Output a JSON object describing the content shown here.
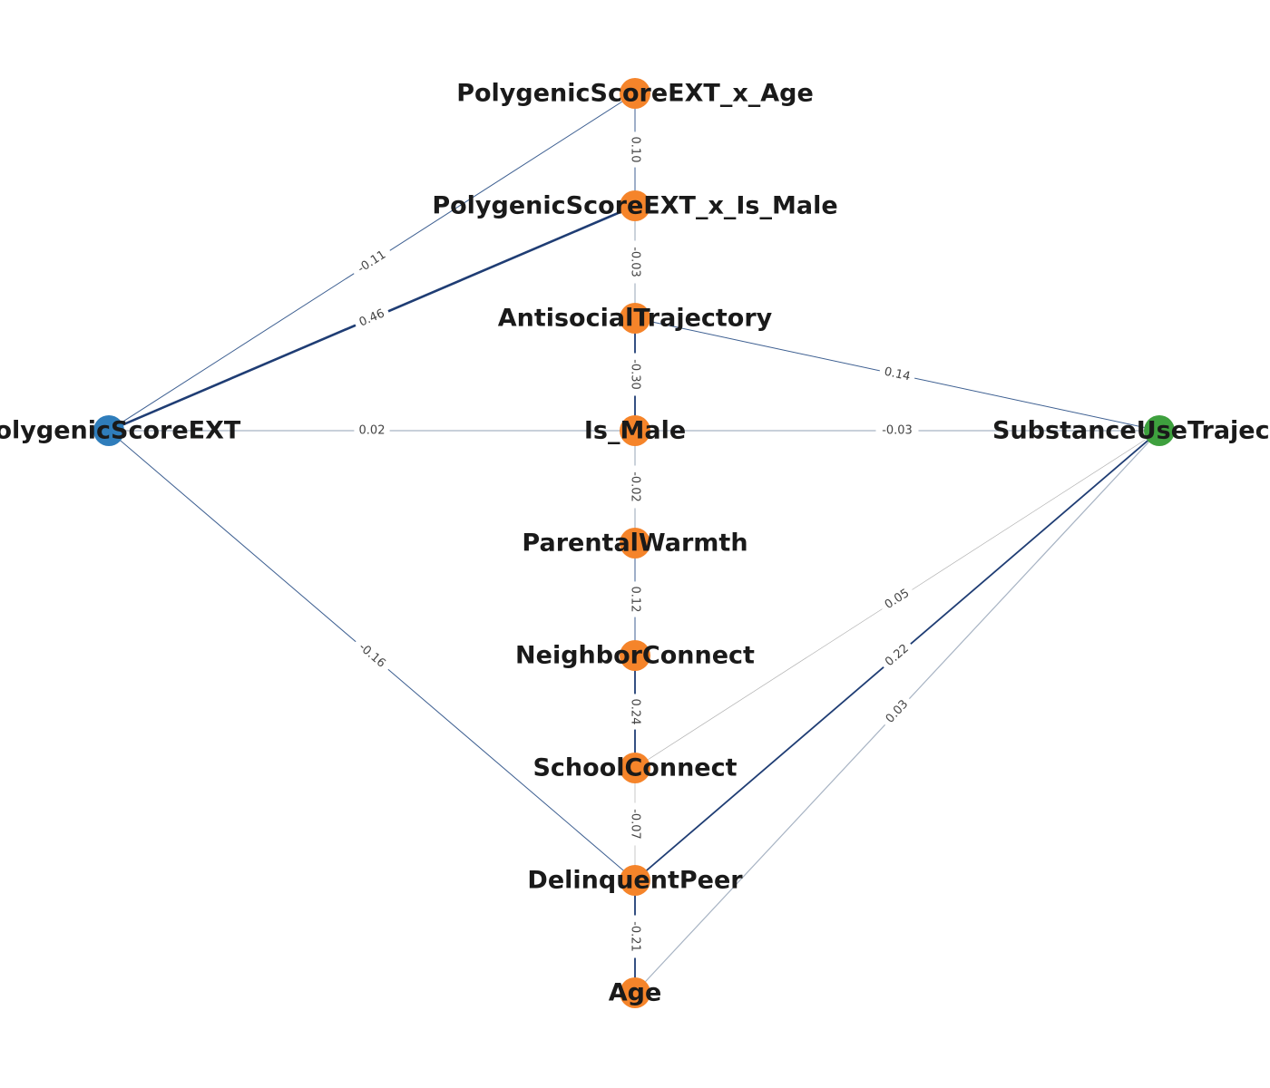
{
  "colors": {
    "exposure": "#2f7dbb",
    "mediator": "#f5842a",
    "outcome": "#3ea03e",
    "edge_strong": "#1f3d74",
    "edge_medium": "#3d5f91",
    "edge_weak": "#a7b3c3",
    "edge_faint": "#b0b0b0"
  },
  "nodes": [
    {
      "id": "pgs",
      "label": "PolygenicScoreEXT",
      "role": "exposure"
    },
    {
      "id": "pgs_age",
      "label": "PolygenicScoreEXT_x_Age",
      "role": "mediator"
    },
    {
      "id": "pgs_male",
      "label": "PolygenicScoreEXT_x_Is_Male",
      "role": "mediator"
    },
    {
      "id": "antisocial",
      "label": "AntisocialTrajectory",
      "role": "mediator"
    },
    {
      "id": "is_male",
      "label": "Is_Male",
      "role": "mediator"
    },
    {
      "id": "warmth",
      "label": "ParentalWarmth",
      "role": "mediator"
    },
    {
      "id": "neighbor",
      "label": "NeighborConnect",
      "role": "mediator"
    },
    {
      "id": "school",
      "label": "SchoolConnect",
      "role": "mediator"
    },
    {
      "id": "delinquent",
      "label": "DelinquentPeer",
      "role": "mediator"
    },
    {
      "id": "age",
      "label": "Age",
      "role": "mediator"
    },
    {
      "id": "substance",
      "label": "SubstanceUseTrajectory",
      "role": "outcome"
    }
  ],
  "edges": [
    {
      "source": "pgs",
      "target": "pgs_age",
      "weight": "-0.11"
    },
    {
      "source": "pgs",
      "target": "pgs_male",
      "weight": "0.46"
    },
    {
      "source": "pgs",
      "target": "is_male",
      "weight": "0.02"
    },
    {
      "source": "pgs",
      "target": "delinquent",
      "weight": "-0.16"
    },
    {
      "source": "pgs_age",
      "target": "pgs_male",
      "weight": "0.10"
    },
    {
      "source": "pgs_male",
      "target": "antisocial",
      "weight": "-0.03"
    },
    {
      "source": "antisocial",
      "target": "is_male",
      "weight": "-0.30"
    },
    {
      "source": "antisocial",
      "target": "substance",
      "weight": "0.14"
    },
    {
      "source": "is_male",
      "target": "substance",
      "weight": "-0.03"
    },
    {
      "source": "is_male",
      "target": "warmth",
      "weight": "-0.02"
    },
    {
      "source": "warmth",
      "target": "neighbor",
      "weight": "0.12"
    },
    {
      "source": "neighbor",
      "target": "school",
      "weight": "0.24"
    },
    {
      "source": "school",
      "target": "substance",
      "weight": "0.05"
    },
    {
      "source": "school",
      "target": "delinquent",
      "weight": "-0.07"
    },
    {
      "source": "delinquent",
      "target": "substance",
      "weight": "0.22"
    },
    {
      "source": "delinquent",
      "target": "age",
      "weight": "-0.21"
    },
    {
      "source": "age",
      "target": "substance",
      "weight": "0.03"
    }
  ]
}
